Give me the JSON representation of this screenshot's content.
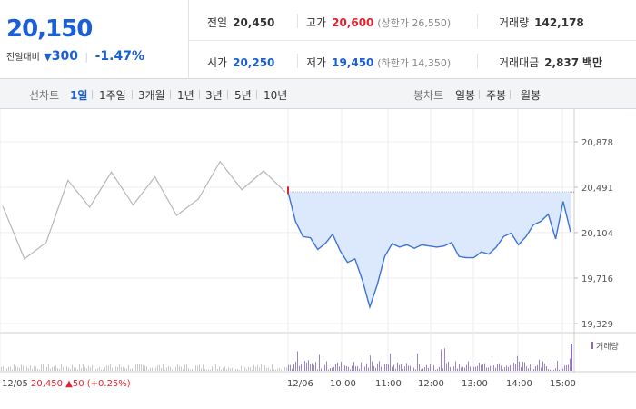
{
  "quote": {
    "price": "20,150",
    "change_label": "전일대비",
    "change_arrow": "▼",
    "change_amount": "300",
    "change_percent": "-1.47%"
  },
  "stats": {
    "prev_close": {
      "label": "전일",
      "value": "20,450"
    },
    "high": {
      "label": "고가",
      "value": "20,600",
      "sub": "(상한가 26,550)"
    },
    "volume": {
      "label": "거래량",
      "value": "142,178"
    },
    "open": {
      "label": "시가",
      "value": "20,250"
    },
    "low": {
      "label": "저가",
      "value": "19,450",
      "sub": "(하한가 14,350)"
    },
    "amount": {
      "label": "거래대금",
      "value": "2,837",
      "unit": "백만"
    }
  },
  "tabs": {
    "line_label": "선차트",
    "line_periods": [
      "1일",
      "1주일",
      "3개월",
      "1년",
      "3년",
      "5년",
      "10년"
    ],
    "active": "1일",
    "candle_label": "봉차트",
    "candle_periods": [
      "일봉",
      "주봉",
      "월봉"
    ]
  },
  "chart_data": {
    "type": "line",
    "ylabels": [
      "20,878",
      "20,491",
      "20,104",
      "19,716",
      "19,329"
    ],
    "ylim": [
      19329,
      20878
    ],
    "reference_price": 20450,
    "xlabels": [
      "12/06",
      "10:00",
      "11:00",
      "12:00",
      "13:00",
      "14:00",
      "15:00"
    ],
    "prev_day_label": {
      "date": "12/05",
      "close": "20,450",
      "arrow": "▲",
      "change": "50",
      "percent": "(+0.25%)"
    },
    "volume_legend": "거래량",
    "series": [
      {
        "x": [
          "12/05 09:00",
          "12/05 09:30",
          "12/05 10:00",
          "12/05 10:30",
          "12/05 11:00",
          "12/05 11:30",
          "12/05 12:00",
          "12/05 12:30",
          "12/05 13:00",
          "12/05 13:30",
          "12/05 14:00",
          "12/05 14:30",
          "12/05 15:00",
          "12/05 15:30"
        ],
        "values": [
          20330,
          19880,
          20020,
          20550,
          20320,
          20620,
          20340,
          20580,
          20250,
          20390,
          20710,
          20470,
          20630,
          20450
        ]
      },
      {
        "x": [
          "09:00",
          "09:10",
          "09:20",
          "09:30",
          "09:40",
          "09:50",
          "10:00",
          "10:10",
          "10:20",
          "10:30",
          "10:40",
          "10:50",
          "11:00",
          "11:10",
          "11:20",
          "11:30",
          "11:40",
          "11:50",
          "12:00",
          "12:10",
          "12:20",
          "12:30",
          "12:40",
          "12:50",
          "13:00",
          "13:10",
          "13:20",
          "13:30",
          "13:40",
          "13:50",
          "14:00",
          "14:10",
          "14:20",
          "14:30",
          "14:40",
          "14:50",
          "15:00",
          "15:10",
          "15:20"
        ],
        "values": [
          20450,
          20200,
          20070,
          20060,
          19960,
          20010,
          20090,
          19950,
          19850,
          19880,
          19700,
          19470,
          19660,
          19900,
          20010,
          19980,
          20000,
          19970,
          20000,
          19990,
          19980,
          19990,
          20020,
          19900,
          19890,
          19890,
          19940,
          19920,
          19980,
          20070,
          20100,
          20000,
          20070,
          20170,
          20200,
          20260,
          20050,
          20370,
          20110
        ]
      }
    ]
  }
}
